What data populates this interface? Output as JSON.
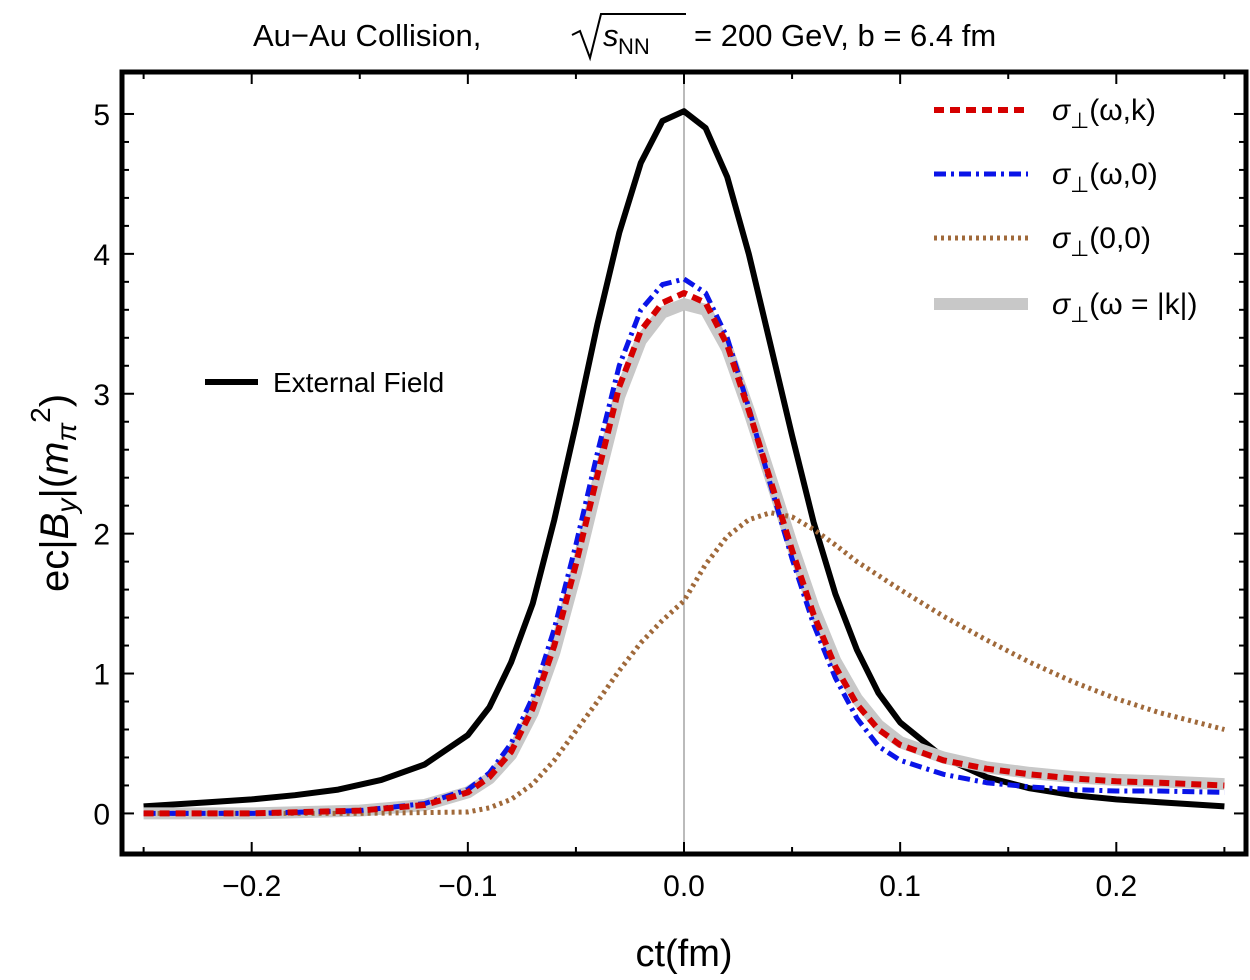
{
  "chart_data": {
    "type": "line",
    "title": {
      "prefix": "Au−Au Collision,",
      "sqrt_var": "s",
      "sqrt_sub": "NN",
      "suffix": "= 200 GeV, b = 6.4 fm"
    },
    "xlabel": "ct(fm)",
    "ylabel": {
      "ec": "ec",
      "bar1": "|",
      "B": "B",
      "B_sub": "y",
      "bar2": "|",
      "open": "(",
      "m": "m",
      "m_sub": "π",
      "m_sup": "2",
      "close": ")"
    },
    "xlim": [
      -0.26,
      0.26
    ],
    "ylim": [
      -0.29,
      5.3
    ],
    "xticks": [
      -0.2,
      -0.1,
      0.0,
      0.1,
      0.2
    ],
    "xtick_labels": [
      "−0.2",
      "−0.1",
      "0.0",
      "0.1",
      "0.2"
    ],
    "yticks": [
      0,
      1,
      2,
      3,
      4,
      5
    ],
    "ytick_labels": [
      "0",
      "1",
      "2",
      "3",
      "4",
      "5"
    ],
    "grid": false,
    "vertical_reference_line_x": 0.0,
    "legend_position": "top-right",
    "series": [
      {
        "name": "External Field",
        "legend_pos": "left",
        "color": "#000000",
        "style": "solid",
        "x": [
          -0.25,
          -0.22,
          -0.2,
          -0.18,
          -0.16,
          -0.14,
          -0.12,
          -0.1,
          -0.09,
          -0.08,
          -0.07,
          -0.06,
          -0.05,
          -0.04,
          -0.03,
          -0.02,
          -0.01,
          0.0,
          0.01,
          0.02,
          0.03,
          0.04,
          0.05,
          0.06,
          0.07,
          0.08,
          0.09,
          0.1,
          0.12,
          0.14,
          0.16,
          0.18,
          0.2,
          0.22,
          0.25
        ],
        "y": [
          0.05,
          0.08,
          0.1,
          0.13,
          0.17,
          0.24,
          0.35,
          0.56,
          0.76,
          1.08,
          1.5,
          2.1,
          2.78,
          3.5,
          4.15,
          4.65,
          4.95,
          5.02,
          4.9,
          4.55,
          4.0,
          3.35,
          2.7,
          2.08,
          1.57,
          1.17,
          0.86,
          0.65,
          0.4,
          0.26,
          0.18,
          0.13,
          0.1,
          0.08,
          0.05
        ]
      },
      {
        "name_greek": "σ",
        "name_sub": "⊥",
        "name_args": "(ω,k)",
        "legend_pos": "top",
        "color": "#d50000",
        "style": "dashed",
        "x": [
          -0.25,
          -0.2,
          -0.15,
          -0.12,
          -0.1,
          -0.09,
          -0.08,
          -0.07,
          -0.06,
          -0.05,
          -0.04,
          -0.03,
          -0.02,
          -0.01,
          0.0,
          0.01,
          0.02,
          0.03,
          0.04,
          0.05,
          0.06,
          0.07,
          0.08,
          0.09,
          0.1,
          0.12,
          0.14,
          0.16,
          0.18,
          0.2,
          0.22,
          0.25
        ],
        "y": [
          0.0,
          0.0,
          0.02,
          0.06,
          0.15,
          0.26,
          0.44,
          0.75,
          1.2,
          1.78,
          2.42,
          3.05,
          3.45,
          3.65,
          3.72,
          3.65,
          3.35,
          2.88,
          2.38,
          1.88,
          1.42,
          1.05,
          0.78,
          0.6,
          0.49,
          0.38,
          0.32,
          0.28,
          0.25,
          0.23,
          0.22,
          0.2
        ]
      },
      {
        "name_greek": "σ",
        "name_sub": "⊥",
        "name_args": "(ω,0)",
        "legend_pos": "top",
        "color": "#0a14e8",
        "style": "dashdot",
        "x": [
          -0.25,
          -0.2,
          -0.15,
          -0.12,
          -0.1,
          -0.09,
          -0.08,
          -0.07,
          -0.06,
          -0.05,
          -0.04,
          -0.03,
          -0.02,
          -0.01,
          0.0,
          0.01,
          0.02,
          0.03,
          0.04,
          0.05,
          0.06,
          0.07,
          0.08,
          0.09,
          0.1,
          0.12,
          0.14,
          0.16,
          0.18,
          0.2,
          0.22,
          0.25
        ],
        "y": [
          0.0,
          0.0,
          0.02,
          0.07,
          0.17,
          0.29,
          0.5,
          0.83,
          1.32,
          1.92,
          2.58,
          3.2,
          3.6,
          3.78,
          3.82,
          3.72,
          3.4,
          2.9,
          2.35,
          1.82,
          1.35,
          0.97,
          0.68,
          0.48,
          0.38,
          0.28,
          0.22,
          0.19,
          0.17,
          0.16,
          0.16,
          0.15
        ]
      },
      {
        "name_greek": "σ",
        "name_sub": "⊥",
        "name_args": "(0,0)",
        "legend_pos": "top",
        "color": "#a0693a",
        "style": "dotted",
        "x": [
          -0.25,
          -0.2,
          -0.15,
          -0.1,
          -0.09,
          -0.08,
          -0.07,
          -0.06,
          -0.05,
          -0.04,
          -0.03,
          -0.02,
          -0.01,
          0.0,
          0.01,
          0.02,
          0.03,
          0.04,
          0.05,
          0.06,
          0.07,
          0.08,
          0.1,
          0.12,
          0.14,
          0.16,
          0.18,
          0.2,
          0.22,
          0.25
        ],
        "y": [
          0.0,
          0.0,
          0.0,
          0.01,
          0.04,
          0.1,
          0.21,
          0.38,
          0.59,
          0.8,
          1.02,
          1.22,
          1.38,
          1.52,
          1.78,
          1.98,
          2.1,
          2.15,
          2.12,
          2.03,
          1.92,
          1.8,
          1.6,
          1.41,
          1.24,
          1.08,
          0.94,
          0.82,
          0.72,
          0.6
        ]
      },
      {
        "name_greek": "σ",
        "name_sub": "⊥",
        "name_args": "(ω = |k|)",
        "legend_pos": "top",
        "color": "#c8c8c8",
        "style": "solid-thick",
        "x": [
          -0.25,
          -0.2,
          -0.15,
          -0.12,
          -0.1,
          -0.09,
          -0.08,
          -0.07,
          -0.06,
          -0.05,
          -0.04,
          -0.03,
          -0.02,
          -0.01,
          0.0,
          0.01,
          0.02,
          0.03,
          0.04,
          0.05,
          0.06,
          0.07,
          0.08,
          0.09,
          0.1,
          0.12,
          0.14,
          0.16,
          0.18,
          0.2,
          0.22,
          0.25
        ],
        "y": [
          0.0,
          0.0,
          0.02,
          0.06,
          0.15,
          0.25,
          0.42,
          0.72,
          1.15,
          1.72,
          2.36,
          2.98,
          3.38,
          3.58,
          3.64,
          3.6,
          3.32,
          2.88,
          2.4,
          1.92,
          1.47,
          1.09,
          0.82,
          0.63,
          0.51,
          0.4,
          0.33,
          0.29,
          0.26,
          0.24,
          0.23,
          0.21
        ]
      }
    ]
  }
}
